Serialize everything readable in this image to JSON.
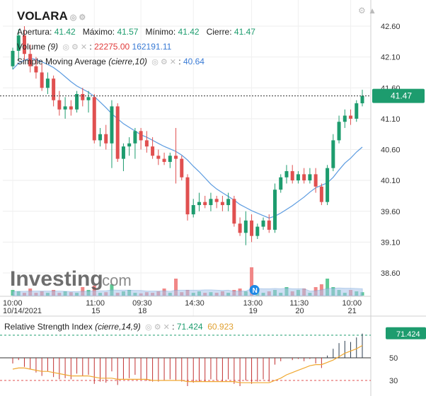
{
  "symbol": "VOLARA",
  "ohlc": {
    "open_label": "Apertura:",
    "open": "41.42",
    "high_label": "Máximo:",
    "high": "41.57",
    "low_label": "Mínimo:",
    "low": "41.42",
    "close_label": "Cierre:",
    "close": "41.47"
  },
  "volume_ind": {
    "label": "Volume",
    "param": "(9)",
    "v1": "22275.00",
    "v2": "162191.11"
  },
  "sma_ind": {
    "label": "Simple Moving Average",
    "param": "(cierre,10)",
    "value": "40.64"
  },
  "rsi_ind": {
    "label": "Relative Strength Index",
    "param": "(cierre,14,9)",
    "value": "71.424",
    "signal": "60.923"
  },
  "last_price_tag": "41.47",
  "rsi_tag": "71.424",
  "watermark": "Investing",
  "watermark_suffix": ".com",
  "marker": "N",
  "colors": {
    "up": "#1d9c6e",
    "down": "#e05050",
    "sma": "#5b9be0",
    "volume": "#a9c6ec",
    "rsi_signal": "#f0a830"
  },
  "chart_data": {
    "type": "candlestick",
    "price_axis": {
      "ticks": [
        "42.60",
        "42.10",
        "41.60",
        "41.10",
        "40.60",
        "40.10",
        "39.60",
        "39.10",
        "38.60"
      ],
      "range": [
        38.4,
        42.8
      ]
    },
    "rsi_axis": {
      "ticks": [
        "50",
        "30"
      ]
    },
    "time_labels": [
      {
        "top": "10:00",
        "bottom": "10/14/2021"
      },
      {
        "top": "11:00",
        "bottom": "15"
      },
      {
        "top": "09:30",
        "bottom": "18"
      },
      {
        "top": "14:30",
        "bottom": ""
      },
      {
        "top": "13:00",
        "bottom": "19"
      },
      {
        "top": "11:30",
        "bottom": "20"
      },
      {
        "top": "10:00",
        "bottom": "21"
      }
    ],
    "candles": [
      [
        41.95,
        42.25,
        41.9,
        42.2
      ],
      [
        42.2,
        42.55,
        42.05,
        42.45
      ],
      [
        42.45,
        42.6,
        42.05,
        42.15
      ],
      [
        42.15,
        42.3,
        41.85,
        41.95
      ],
      [
        41.95,
        42.1,
        41.75,
        41.85
      ],
      [
        41.85,
        42.0,
        41.55,
        41.6
      ],
      [
        41.6,
        41.85,
        41.5,
        41.75
      ],
      [
        41.75,
        41.8,
        41.3,
        41.4
      ],
      [
        41.4,
        41.55,
        41.15,
        41.25
      ],
      [
        41.25,
        41.45,
        41.1,
        41.3
      ],
      [
        41.3,
        41.4,
        41.15,
        41.25
      ],
      [
        41.25,
        41.55,
        41.2,
        41.5
      ],
      [
        41.5,
        41.6,
        41.3,
        41.4
      ],
      [
        41.4,
        41.55,
        41.2,
        41.45
      ],
      [
        41.45,
        41.5,
        40.7,
        40.75
      ],
      [
        40.75,
        40.95,
        40.65,
        40.85
      ],
      [
        40.85,
        41.0,
        40.6,
        40.7
      ],
      [
        40.7,
        41.4,
        40.3,
        41.3
      ],
      [
        41.3,
        41.35,
        40.4,
        40.45
      ],
      [
        40.45,
        40.7,
        40.25,
        40.65
      ],
      [
        40.65,
        40.8,
        40.5,
        40.7
      ],
      [
        40.7,
        40.95,
        40.45,
        40.9
      ],
      [
        40.9,
        40.95,
        40.6,
        40.75
      ],
      [
        40.75,
        40.9,
        40.55,
        40.65
      ],
      [
        40.65,
        40.8,
        40.45,
        40.5
      ],
      [
        40.5,
        40.6,
        40.35,
        40.45
      ],
      [
        40.45,
        40.55,
        40.35,
        40.4
      ],
      [
        40.4,
        40.55,
        40.3,
        40.5
      ],
      [
        40.5,
        40.95,
        40.05,
        40.45
      ],
      [
        40.45,
        40.5,
        40.1,
        40.15
      ],
      [
        40.15,
        40.2,
        39.45,
        39.55
      ],
      [
        39.55,
        39.8,
        39.5,
        39.7
      ],
      [
        39.7,
        39.9,
        39.6,
        39.75
      ],
      [
        39.75,
        39.85,
        39.65,
        39.7
      ],
      [
        39.7,
        39.9,
        39.6,
        39.8
      ],
      [
        39.8,
        39.85,
        39.65,
        39.75
      ],
      [
        39.75,
        39.85,
        39.6,
        39.7
      ],
      [
        39.7,
        39.9,
        39.6,
        39.8
      ],
      [
        39.8,
        39.85,
        39.35,
        39.4
      ],
      [
        39.4,
        39.5,
        39.2,
        39.25
      ],
      [
        39.25,
        39.6,
        39.05,
        39.45
      ],
      [
        39.45,
        39.55,
        39.1,
        39.2
      ],
      [
        39.2,
        39.4,
        39.15,
        39.35
      ],
      [
        39.35,
        39.5,
        39.3,
        39.45
      ],
      [
        39.45,
        39.55,
        39.25,
        39.3
      ],
      [
        39.3,
        40.05,
        39.25,
        39.95
      ],
      [
        39.95,
        40.2,
        39.9,
        40.15
      ],
      [
        40.15,
        40.35,
        40.05,
        40.25
      ],
      [
        40.25,
        40.35,
        40.05,
        40.1
      ],
      [
        40.1,
        40.25,
        40.05,
        40.2
      ],
      [
        40.2,
        40.3,
        40.05,
        40.1
      ],
      [
        40.1,
        40.3,
        40.05,
        40.2
      ],
      [
        40.2,
        40.3,
        39.9,
        40.0
      ],
      [
        40.0,
        40.05,
        39.7,
        39.75
      ],
      [
        39.75,
        40.35,
        39.7,
        40.3
      ],
      [
        40.3,
        40.85,
        40.25,
        40.75
      ],
      [
        40.75,
        41.15,
        40.7,
        41.05
      ],
      [
        41.05,
        41.25,
        40.95,
        41.15
      ],
      [
        41.15,
        41.25,
        41.0,
        41.1
      ],
      [
        41.1,
        41.4,
        41.05,
        41.35
      ],
      [
        41.35,
        41.57,
        41.3,
        41.47
      ]
    ],
    "sma": [
      41.9,
      42.0,
      42.05,
      42.08,
      42.06,
      42.02,
      41.98,
      41.93,
      41.86,
      41.78,
      41.7,
      41.63,
      41.58,
      41.53,
      41.46,
      41.37,
      41.28,
      41.18,
      41.1,
      41.02,
      40.96,
      40.9,
      40.84,
      40.8,
      40.75,
      40.7,
      40.65,
      40.61,
      40.57,
      40.51,
      40.43,
      40.33,
      40.24,
      40.14,
      40.04,
      39.96,
      39.9,
      39.84,
      39.78,
      39.71,
      39.66,
      39.61,
      39.57,
      39.53,
      39.49,
      39.52,
      39.57,
      39.63,
      39.69,
      39.76,
      39.83,
      39.91,
      39.98,
      40.02,
      40.06,
      40.15,
      40.27,
      40.38,
      40.46,
      40.56,
      40.64
    ],
    "volume": [
      0.2,
      0.15,
      0.1,
      0.25,
      0.1,
      0.15,
      0.1,
      0.2,
      0.1,
      0.15,
      0.12,
      0.1,
      0.3,
      0.2,
      0.35,
      0.1,
      0.12,
      0.4,
      0.1,
      0.15,
      0.2,
      0.1,
      0.08,
      0.12,
      0.1,
      0.15,
      0.25,
      0.1,
      0.6,
      0.12,
      0.2,
      0.1,
      0.15,
      0.1,
      0.12,
      0.1,
      0.15,
      0.1,
      0.2,
      0.25,
      0.15,
      1.0,
      0.2,
      0.1,
      0.15,
      0.2,
      0.1,
      0.3,
      0.15,
      0.2,
      0.25,
      0.1,
      0.3,
      0.4,
      0.6,
      0.3,
      0.2,
      0.1,
      0.2,
      0.15,
      0.12
    ],
    "volume_ma": [
      0.14,
      0.15,
      0.15,
      0.16,
      0.16,
      0.16,
      0.16,
      0.16,
      0.16,
      0.15,
      0.14,
      0.14,
      0.15,
      0.15,
      0.17,
      0.17,
      0.17,
      0.2,
      0.19,
      0.19,
      0.19,
      0.18,
      0.18,
      0.16,
      0.16,
      0.16,
      0.17,
      0.15,
      0.19,
      0.19,
      0.19,
      0.19,
      0.19,
      0.2,
      0.2,
      0.19,
      0.18,
      0.19,
      0.15,
      0.16,
      0.16,
      0.24,
      0.25,
      0.24,
      0.24,
      0.25,
      0.24,
      0.26,
      0.24,
      0.24,
      0.24,
      0.16,
      0.17,
      0.2,
      0.25,
      0.26,
      0.27,
      0.26,
      0.26,
      0.25,
      0.24
    ],
    "rsi": [
      45,
      48,
      42,
      40,
      37,
      34,
      38,
      33,
      31,
      32,
      31,
      36,
      34,
      35,
      27,
      29,
      28,
      38,
      26,
      31,
      32,
      35,
      31,
      30,
      29,
      29,
      30,
      31,
      30,
      29,
      25,
      28,
      29,
      29,
      31,
      30,
      29,
      31,
      27,
      25,
      30,
      27,
      29,
      31,
      29,
      44,
      47,
      50,
      48,
      49,
      47,
      49,
      45,
      41,
      52,
      58,
      63,
      65,
      64,
      68,
      71.4
    ],
    "rsi_signal": [
      40,
      41,
      41,
      40,
      39,
      38,
      38,
      37,
      36,
      35,
      34,
      34,
      34,
      34,
      33,
      32,
      32,
      32,
      31,
      31,
      31,
      31,
      31,
      31,
      30,
      30,
      30,
      30,
      30,
      30,
      29,
      29,
      29,
      29,
      29,
      29,
      29,
      29,
      29,
      28,
      28,
      28,
      28,
      28,
      28,
      30,
      32,
      35,
      37,
      39,
      41,
      43,
      44,
      44,
      46,
      48,
      51,
      54,
      56,
      58,
      60.9
    ],
    "rsi_range": [
      20,
      80
    ]
  }
}
